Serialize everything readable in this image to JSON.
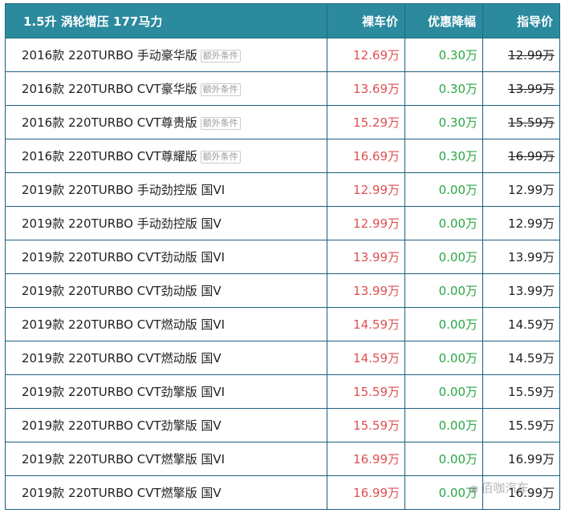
{
  "header": {
    "spec": "1.5升 涡轮增压 177马力",
    "col_price": "裸车价",
    "col_discount": "优惠降幅",
    "col_guide": "指导价"
  },
  "tag_label": "额外条件",
  "rows": [
    {
      "name": "2016款 220TURBO 手动豪华版",
      "tag": true,
      "price": "12.69万",
      "discount": "0.30万",
      "guide": "12.99万",
      "strike": true
    },
    {
      "name": "2016款 220TURBO CVT豪华版",
      "tag": true,
      "price": "13.69万",
      "discount": "0.30万",
      "guide": "13.99万",
      "strike": true
    },
    {
      "name": "2016款 220TURBO CVT尊贵版",
      "tag": true,
      "price": "15.29万",
      "discount": "0.30万",
      "guide": "15.59万",
      "strike": true
    },
    {
      "name": "2016款 220TURBO CVT尊耀版",
      "tag": true,
      "price": "16.69万",
      "discount": "0.30万",
      "guide": "16.99万",
      "strike": true
    },
    {
      "name": "2019款 220TURBO 手动劲控版 国VI",
      "tag": false,
      "price": "12.99万",
      "discount": "0.00万",
      "guide": "12.99万",
      "strike": false
    },
    {
      "name": "2019款 220TURBO 手动劲控版 国V",
      "tag": false,
      "price": "12.99万",
      "discount": "0.00万",
      "guide": "12.99万",
      "strike": false
    },
    {
      "name": "2019款 220TURBO CVT劲动版 国VI",
      "tag": false,
      "price": "13.99万",
      "discount": "0.00万",
      "guide": "13.99万",
      "strike": false
    },
    {
      "name": "2019款 220TURBO CVT劲动版 国V",
      "tag": false,
      "price": "13.99万",
      "discount": "0.00万",
      "guide": "13.99万",
      "strike": false
    },
    {
      "name": "2019款 220TURBO CVT燃动版 国VI",
      "tag": false,
      "price": "14.59万",
      "discount": "0.00万",
      "guide": "14.59万",
      "strike": false
    },
    {
      "name": "2019款 220TURBO CVT燃动版 国V",
      "tag": false,
      "price": "14.59万",
      "discount": "0.00万",
      "guide": "14.59万",
      "strike": false
    },
    {
      "name": "2019款 220TURBO CVT劲擎版 国VI",
      "tag": false,
      "price": "15.59万",
      "discount": "0.00万",
      "guide": "15.59万",
      "strike": false
    },
    {
      "name": "2019款 220TURBO CVT劲擎版 国V",
      "tag": false,
      "price": "15.59万",
      "discount": "0.00万",
      "guide": "15.59万",
      "strike": false
    },
    {
      "name": "2019款 220TURBO CVT燃擎版 国VI",
      "tag": false,
      "price": "16.99万",
      "discount": "0.00万",
      "guide": "16.99万",
      "strike": false
    },
    {
      "name": "2019款 220TURBO CVT燃擎版 国V",
      "tag": false,
      "price": "16.99万",
      "discount": "0.00万",
      "guide": "16.99万",
      "strike": false
    }
  ],
  "watermark": {
    "icon": "wechat-icon",
    "text": "佰咖汽车"
  },
  "colors": {
    "header_bg": "#2b8a9e",
    "price": "#e05050",
    "discount": "#2aa745",
    "border": "#1e5f80"
  }
}
